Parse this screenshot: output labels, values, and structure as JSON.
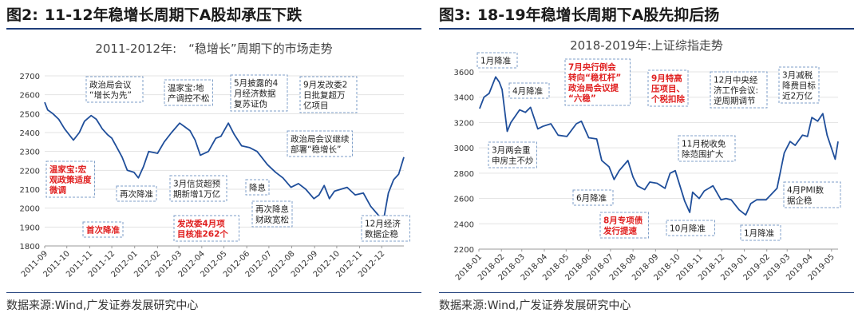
{
  "figures": [
    {
      "label": "图2:",
      "heading": "11-12年稳增长周期下A股却承压下跌",
      "source": "数据来源:Wind,广发证券发展研究中心"
    },
    {
      "label": "图3:",
      "heading": "18-19年稳增长周期下A股先抑后扬",
      "source": "数据来源:Wind,广发证券发展研究中心"
    }
  ],
  "chart_data": [
    {
      "type": "line",
      "title": "2011-2012年:　“稳增长”周期下的市场走势",
      "ylim": [
        1800,
        2700
      ],
      "yticks": [
        1800,
        1900,
        2000,
        2100,
        2200,
        2300,
        2400,
        2500,
        2600,
        2700
      ],
      "xlim": [
        "2011-09-01",
        "2012-12-31"
      ],
      "xticks": [
        "2011-09",
        "2011-10",
        "2011-11",
        "2011-12",
        "2012-01",
        "2012-02",
        "2012-03",
        "2012-04",
        "2012-05",
        "2012-06",
        "2012-07",
        "2012-08",
        "2012-09",
        "2012-10",
        "2012-11",
        "2012-12"
      ],
      "line_color": "#1f4e9a",
      "series": [
        {
          "values": [
            [
              "2011-09-01",
              2560
            ],
            [
              "2011-09-05",
              2520
            ],
            [
              "2011-09-12",
              2500
            ],
            [
              "2011-09-20",
              2470
            ],
            [
              "2011-09-28",
              2420
            ],
            [
              "2011-10-10",
              2360
            ],
            [
              "2011-10-18",
              2400
            ],
            [
              "2011-10-25",
              2460
            ],
            [
              "2011-11-03",
              2490
            ],
            [
              "2011-11-10",
              2470
            ],
            [
              "2011-11-18",
              2420
            ],
            [
              "2011-11-25",
              2390
            ],
            [
              "2011-12-01",
              2370
            ],
            [
              "2011-12-08",
              2320
            ],
            [
              "2011-12-15",
              2270
            ],
            [
              "2011-12-22",
              2200
            ],
            [
              "2011-12-31",
              2190
            ],
            [
              "2012-01-06",
              2160
            ],
            [
              "2012-01-13",
              2220
            ],
            [
              "2012-01-20",
              2300
            ],
            [
              "2012-02-01",
              2290
            ],
            [
              "2012-02-10",
              2350
            ],
            [
              "2012-02-20",
              2400
            ],
            [
              "2012-03-02",
              2450
            ],
            [
              "2012-03-09",
              2430
            ],
            [
              "2012-03-16",
              2410
            ],
            [
              "2012-03-23",
              2360
            ],
            [
              "2012-03-30",
              2280
            ],
            [
              "2012-04-10",
              2300
            ],
            [
              "2012-04-20",
              2370
            ],
            [
              "2012-04-27",
              2380
            ],
            [
              "2012-05-07",
              2450
            ],
            [
              "2012-05-15",
              2390
            ],
            [
              "2012-05-25",
              2330
            ],
            [
              "2012-06-05",
              2320
            ],
            [
              "2012-06-15",
              2300
            ],
            [
              "2012-06-29",
              2230
            ],
            [
              "2012-07-10",
              2190
            ],
            [
              "2012-07-20",
              2160
            ],
            [
              "2012-07-31",
              2110
            ],
            [
              "2012-08-10",
              2130
            ],
            [
              "2012-08-20",
              2100
            ],
            [
              "2012-08-31",
              2050
            ],
            [
              "2012-09-07",
              2070
            ],
            [
              "2012-09-14",
              2120
            ],
            [
              "2012-09-21",
              2050
            ],
            [
              "2012-09-28",
              2090
            ],
            [
              "2012-10-15",
              2110
            ],
            [
              "2012-10-26",
              2070
            ],
            [
              "2012-11-06",
              2080
            ],
            [
              "2012-11-16",
              2010
            ],
            [
              "2012-11-27",
              1960
            ],
            [
              "2012-12-04",
              1950
            ],
            [
              "2012-12-10",
              2080
            ],
            [
              "2012-12-17",
              2150
            ],
            [
              "2012-12-24",
              2180
            ],
            [
              "2012-12-31",
              2270
            ]
          ]
        }
      ],
      "annotations": [
        {
          "text": "政治局会议\n“增长为先”",
          "at": "2011-11-01"
        },
        {
          "text": "温家宝:地\n产调控不松",
          "at": "2012-02-15"
        },
        {
          "text": "5月披露的4\n月经济数据\n复苏证伪",
          "at": "2012-05-15"
        },
        {
          "text": "9月发改委2\n日批复超万\n亿项目",
          "at": "2012-09-07"
        },
        {
          "text": "政治局会议继续\n部署“稳增长”",
          "at": "2012-10-26"
        },
        {
          "text": "温家宝:宏\n观政策适度\n微调",
          "at": "2011-09-10",
          "color": "#e02020"
        },
        {
          "text": "再次降准",
          "at": "2012-02-20"
        },
        {
          "text": "3月信贷超预\n期新增1万亿",
          "at": "2012-04-10"
        },
        {
          "text": "降息",
          "at": "2012-06-10"
        },
        {
          "text": "再次降息\n财政宽松",
          "at": "2012-07-06"
        },
        {
          "text": "12月经济\n数据企稳",
          "at": "2012-12-10"
        },
        {
          "text": "首次降准",
          "at": "2011-12-05",
          "color": "#e02020"
        },
        {
          "text": "发改委4月项\n目核准262个",
          "at": "2012-05-20",
          "color": "#e02020"
        }
      ]
    },
    {
      "type": "line",
      "title": "2018-2019年:上证综指走势",
      "ylim": [
        2200,
        3600
      ],
      "yticks": [
        2200,
        2400,
        2600,
        2800,
        3000,
        3200,
        3400,
        3600
      ],
      "xlim": [
        "2018-01-01",
        "2019-05-10"
      ],
      "xticks": [
        "2018-01",
        "2018-02",
        "2018-03",
        "2018-04",
        "2018-05",
        "2018-06",
        "2018-07",
        "2018-08",
        "2018-09",
        "2018-10",
        "2018-11",
        "2018-12",
        "2019-01",
        "2019-02",
        "2019-03",
        "2019-04",
        "2019-05"
      ],
      "line_color": "#1f4e9a",
      "series": [
        {
          "values": [
            [
              "2018-01-02",
              3310
            ],
            [
              "2018-01-08",
              3400
            ],
            [
              "2018-01-15",
              3430
            ],
            [
              "2018-01-24",
              3560
            ],
            [
              "2018-01-29",
              3520
            ],
            [
              "2018-02-02",
              3460
            ],
            [
              "2018-02-09",
              3130
            ],
            [
              "2018-02-14",
              3200
            ],
            [
              "2018-02-26",
              3300
            ],
            [
              "2018-03-06",
              3280
            ],
            [
              "2018-03-13",
              3320
            ],
            [
              "2018-03-23",
              3150
            ],
            [
              "2018-03-30",
              3170
            ],
            [
              "2018-04-10",
              3190
            ],
            [
              "2018-04-20",
              3100
            ],
            [
              "2018-05-02",
              3090
            ],
            [
              "2018-05-15",
              3190
            ],
            [
              "2018-05-22",
              3210
            ],
            [
              "2018-06-01",
              3080
            ],
            [
              "2018-06-12",
              3070
            ],
            [
              "2018-06-19",
              2900
            ],
            [
              "2018-06-29",
              2850
            ],
            [
              "2018-07-06",
              2750
            ],
            [
              "2018-07-13",
              2820
            ],
            [
              "2018-07-25",
              2900
            ],
            [
              "2018-08-01",
              2770
            ],
            [
              "2018-08-07",
              2700
            ],
            [
              "2018-08-17",
              2670
            ],
            [
              "2018-08-24",
              2730
            ],
            [
              "2018-09-03",
              2720
            ],
            [
              "2018-09-14",
              2680
            ],
            [
              "2018-09-21",
              2800
            ],
            [
              "2018-09-28",
              2820
            ],
            [
              "2018-10-11",
              2580
            ],
            [
              "2018-10-18",
              2490
            ],
            [
              "2018-10-22",
              2650
            ],
            [
              "2018-10-31",
              2600
            ],
            [
              "2018-11-07",
              2660
            ],
            [
              "2018-11-19",
              2700
            ],
            [
              "2018-11-30",
              2590
            ],
            [
              "2018-12-07",
              2600
            ],
            [
              "2018-12-14",
              2590
            ],
            [
              "2018-12-25",
              2510
            ],
            [
              "2019-01-03",
              2470
            ],
            [
              "2019-01-10",
              2560
            ],
            [
              "2019-01-18",
              2590
            ],
            [
              "2019-01-31",
              2590
            ],
            [
              "2019-02-15",
              2680
            ],
            [
              "2019-02-25",
              2960
            ],
            [
              "2019-03-05",
              3050
            ],
            [
              "2019-03-12",
              3020
            ],
            [
              "2019-03-22",
              3100
            ],
            [
              "2019-03-29",
              3090
            ],
            [
              "2019-04-04",
              3240
            ],
            [
              "2019-04-12",
              3210
            ],
            [
              "2019-04-19",
              3270
            ],
            [
              "2019-04-25",
              3100
            ],
            [
              "2019-05-06",
              2910
            ],
            [
              "2019-05-10",
              3050
            ]
          ]
        }
      ],
      "annotations": [
        {
          "text": "1月降准",
          "at": "2018-01-24"
        },
        {
          "text": "4月降准",
          "at": "2018-04-17"
        },
        {
          "text": "7月央行例会\n转向“稳杠杆”\n政治局会议提\n“六稳”",
          "at": "2018-07-31",
          "color": "#e02020"
        },
        {
          "text": "9月特高\n压项目、\n个税扣除",
          "at": "2018-09-07",
          "color": "#e02020"
        },
        {
          "text": "12月中央经\n济工作会议:\n逆周期调节",
          "at": "2018-12-21"
        },
        {
          "text": "3月减税\n降费目标\n近2万亿",
          "at": "2019-03-05"
        },
        {
          "text": "3月两会重\n申房主不炒",
          "at": "2018-03-05"
        },
        {
          "text": "11月税收免\n除范围扩大",
          "at": "2018-11-01"
        },
        {
          "text": "6月降准",
          "at": "2018-06-24"
        },
        {
          "text": "8月专项债\n发行提速",
          "at": "2018-08-14",
          "color": "#e02020"
        },
        {
          "text": "10月降准",
          "at": "2018-10-07"
        },
        {
          "text": "1月降准",
          "at": "2019-01-04"
        },
        {
          "text": "4月PMI数\n据企稳",
          "at": "2019-04-30"
        }
      ]
    }
  ]
}
